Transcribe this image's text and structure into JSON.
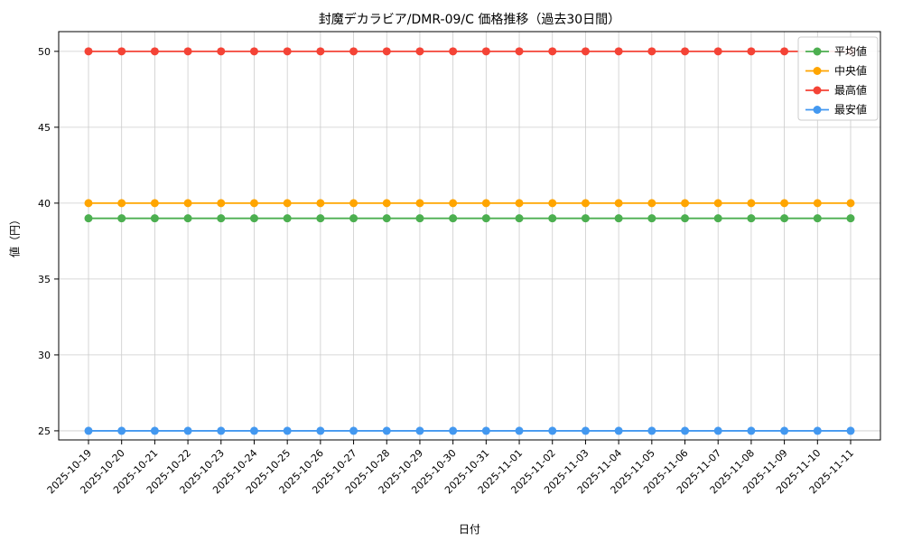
{
  "chart_data": {
    "type": "line",
    "title": "封魔デカラビア/DMR-09/C 価格推移（過去30日間）",
    "xlabel": "日付",
    "ylabel": "値（円）",
    "x": [
      "2025-10-19",
      "2025-10-20",
      "2025-10-21",
      "2025-10-22",
      "2025-10-23",
      "2025-10-24",
      "2025-10-25",
      "2025-10-26",
      "2025-10-27",
      "2025-10-28",
      "2025-10-29",
      "2025-10-30",
      "2025-10-31",
      "2025-11-01",
      "2025-11-02",
      "2025-11-03",
      "2025-11-04",
      "2025-11-05",
      "2025-11-06",
      "2025-11-07",
      "2025-11-08",
      "2025-11-09",
      "2025-11-10",
      "2025-11-11"
    ],
    "ylim": [
      24.4,
      51.3
    ],
    "yticks": [
      25,
      30,
      35,
      40,
      45,
      50
    ],
    "grid": true,
    "legend_position": "upper right",
    "series": [
      {
        "name": "平均値",
        "color": "#4CAF50",
        "values": [
          39,
          39,
          39,
          39,
          39,
          39,
          39,
          39,
          39,
          39,
          39,
          39,
          39,
          39,
          39,
          39,
          39,
          39,
          39,
          39,
          39,
          39,
          39,
          39
        ]
      },
      {
        "name": "中央値",
        "color": "#FFA500",
        "values": [
          40,
          40,
          40,
          40,
          40,
          40,
          40,
          40,
          40,
          40,
          40,
          40,
          40,
          40,
          40,
          40,
          40,
          40,
          40,
          40,
          40,
          40,
          40,
          40
        ]
      },
      {
        "name": "最高値",
        "color": "#F44336",
        "values": [
          50,
          50,
          50,
          50,
          50,
          50,
          50,
          50,
          50,
          50,
          50,
          50,
          50,
          50,
          50,
          50,
          50,
          50,
          50,
          50,
          50,
          50,
          50,
          50
        ]
      },
      {
        "name": "最安値",
        "color": "#4398F0",
        "values": [
          25,
          25,
          25,
          25,
          25,
          25,
          25,
          25,
          25,
          25,
          25,
          25,
          25,
          25,
          25,
          25,
          25,
          25,
          25,
          25,
          25,
          25,
          25,
          25
        ]
      }
    ]
  }
}
